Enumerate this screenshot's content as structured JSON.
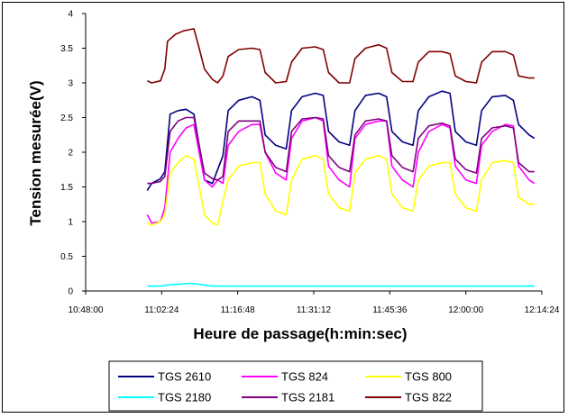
{
  "chart_data": {
    "type": "line",
    "xlabel": "Heure de passage(h:min:sec)",
    "ylabel": "Tension mesurée(V)",
    "xlim": [
      "10:48:00",
      "12:14:24"
    ],
    "ylim": [
      0,
      4
    ],
    "x_tick_labels": [
      "10:48:00",
      "11:02:24",
      "11:16:48",
      "11:31:12",
      "11:45:36",
      "12:00:00",
      "12:14:24"
    ],
    "y_tick_labels": [
      "0",
      "0.5",
      "1",
      "1.5",
      "2",
      "2.5",
      "3",
      "3.5",
      "4"
    ],
    "grid": false,
    "legend_position": "bottom",
    "x_unit": "h:min:sec",
    "series": [
      {
        "name": "TGS 2610",
        "color": "#000080",
        "points": [
          [
            "10:59:40",
            1.45
          ],
          [
            "11:00:30",
            1.55
          ],
          [
            "11:02:10",
            1.62
          ],
          [
            "11:03:00",
            1.72
          ],
          [
            "11:04:00",
            2.55
          ],
          [
            "11:05:30",
            2.6
          ],
          [
            "11:07:00",
            2.62
          ],
          [
            "11:08:30",
            2.55
          ],
          [
            "11:09:30",
            2.1
          ],
          [
            "11:10:30",
            1.6
          ],
          [
            "11:12:00",
            1.55
          ],
          [
            "11:13:00",
            1.75
          ],
          [
            "11:14:00",
            1.95
          ],
          [
            "11:15:00",
            2.6
          ],
          [
            "11:17:00",
            2.75
          ],
          [
            "11:19:30",
            2.8
          ],
          [
            "11:21:00",
            2.75
          ],
          [
            "11:22:00",
            2.25
          ],
          [
            "11:24:00",
            2.1
          ],
          [
            "11:26:00",
            2.05
          ],
          [
            "11:27:00",
            2.6
          ],
          [
            "11:29:00",
            2.8
          ],
          [
            "11:31:30",
            2.85
          ],
          [
            "11:33:00",
            2.82
          ],
          [
            "11:34:00",
            2.3
          ],
          [
            "11:36:00",
            2.15
          ],
          [
            "11:38:00",
            2.1
          ],
          [
            "11:39:00",
            2.6
          ],
          [
            "11:41:00",
            2.82
          ],
          [
            "11:43:30",
            2.85
          ],
          [
            "11:45:00",
            2.8
          ],
          [
            "11:46:00",
            2.3
          ],
          [
            "11:48:00",
            2.15
          ],
          [
            "11:50:00",
            2.1
          ],
          [
            "11:51:00",
            2.6
          ],
          [
            "11:53:00",
            2.8
          ],
          [
            "11:55:30",
            2.88
          ],
          [
            "11:57:00",
            2.85
          ],
          [
            "11:58:00",
            2.3
          ],
          [
            "12:00:00",
            2.15
          ],
          [
            "12:02:00",
            2.1
          ],
          [
            "12:03:00",
            2.6
          ],
          [
            "12:05:00",
            2.8
          ],
          [
            "12:07:30",
            2.82
          ],
          [
            "12:09:00",
            2.75
          ],
          [
            "12:10:00",
            2.4
          ],
          [
            "12:12:00",
            2.25
          ],
          [
            "12:13:00",
            2.2
          ]
        ]
      },
      {
        "name": "TGS 824",
        "color": "#ff00ff",
        "points": [
          [
            "10:59:40",
            1.1
          ],
          [
            "11:00:30",
            0.98
          ],
          [
            "11:02:10",
            1.0
          ],
          [
            "11:03:00",
            1.2
          ],
          [
            "11:04:00",
            2.0
          ],
          [
            "11:05:30",
            2.2
          ],
          [
            "11:07:00",
            2.35
          ],
          [
            "11:08:30",
            2.4
          ],
          [
            "11:09:30",
            2.0
          ],
          [
            "11:10:30",
            1.6
          ],
          [
            "11:12:00",
            1.5
          ],
          [
            "11:13:00",
            1.6
          ],
          [
            "11:14:00",
            1.55
          ],
          [
            "11:15:00",
            2.1
          ],
          [
            "11:17:00",
            2.3
          ],
          [
            "11:19:30",
            2.4
          ],
          [
            "11:21:00",
            2.4
          ],
          [
            "11:22:00",
            2.0
          ],
          [
            "11:24:00",
            1.7
          ],
          [
            "11:26:00",
            1.6
          ],
          [
            "11:27:00",
            2.2
          ],
          [
            "11:29:00",
            2.45
          ],
          [
            "11:31:30",
            2.5
          ],
          [
            "11:33:00",
            2.45
          ],
          [
            "11:34:00",
            1.8
          ],
          [
            "11:36:00",
            1.6
          ],
          [
            "11:38:00",
            1.5
          ],
          [
            "11:39:00",
            2.2
          ],
          [
            "11:41:00",
            2.4
          ],
          [
            "11:43:30",
            2.45
          ],
          [
            "11:45:00",
            2.45
          ],
          [
            "11:46:00",
            1.8
          ],
          [
            "11:48:00",
            1.6
          ],
          [
            "11:50:00",
            1.5
          ],
          [
            "11:51:00",
            2.0
          ],
          [
            "11:53:00",
            2.3
          ],
          [
            "11:55:30",
            2.4
          ],
          [
            "11:57:00",
            2.35
          ],
          [
            "11:58:00",
            1.8
          ],
          [
            "12:00:00",
            1.6
          ],
          [
            "12:02:00",
            1.55
          ],
          [
            "12:03:00",
            2.1
          ],
          [
            "12:05:00",
            2.3
          ],
          [
            "12:07:30",
            2.4
          ],
          [
            "12:09:00",
            2.38
          ],
          [
            "12:10:00",
            1.8
          ],
          [
            "12:12:00",
            1.6
          ],
          [
            "12:13:00",
            1.55
          ]
        ]
      },
      {
        "name": "TGS 800",
        "color": "#ffff00",
        "points": [
          [
            "10:59:40",
            0.98
          ],
          [
            "11:00:30",
            0.95
          ],
          [
            "11:02:10",
            1.0
          ],
          [
            "11:03:00",
            1.1
          ],
          [
            "11:04:00",
            1.7
          ],
          [
            "11:05:30",
            1.85
          ],
          [
            "11:07:00",
            1.95
          ],
          [
            "11:08:30",
            1.9
          ],
          [
            "11:09:30",
            1.5
          ],
          [
            "11:10:30",
            1.1
          ],
          [
            "11:12:00",
            0.98
          ],
          [
            "11:13:00",
            0.95
          ],
          [
            "11:14:00",
            1.3
          ],
          [
            "11:15:00",
            1.6
          ],
          [
            "11:17:00",
            1.8
          ],
          [
            "11:19:30",
            1.85
          ],
          [
            "11:21:00",
            1.85
          ],
          [
            "11:22:00",
            1.4
          ],
          [
            "11:24:00",
            1.15
          ],
          [
            "11:26:00",
            1.1
          ],
          [
            "11:27:00",
            1.6
          ],
          [
            "11:29:00",
            1.9
          ],
          [
            "11:31:30",
            1.95
          ],
          [
            "11:33:00",
            1.9
          ],
          [
            "11:34:00",
            1.4
          ],
          [
            "11:36:00",
            1.2
          ],
          [
            "11:38:00",
            1.15
          ],
          [
            "11:39:00",
            1.7
          ],
          [
            "11:41:00",
            1.9
          ],
          [
            "11:43:30",
            1.95
          ],
          [
            "11:45:00",
            1.9
          ],
          [
            "11:46:00",
            1.4
          ],
          [
            "11:48:00",
            1.2
          ],
          [
            "11:50:00",
            1.15
          ],
          [
            "11:51:00",
            1.6
          ],
          [
            "11:53:00",
            1.8
          ],
          [
            "11:55:30",
            1.85
          ],
          [
            "11:57:00",
            1.85
          ],
          [
            "11:58:00",
            1.4
          ],
          [
            "12:00:00",
            1.2
          ],
          [
            "12:02:00",
            1.15
          ],
          [
            "12:03:00",
            1.6
          ],
          [
            "12:05:00",
            1.85
          ],
          [
            "12:07:30",
            1.88
          ],
          [
            "12:09:00",
            1.85
          ],
          [
            "12:10:00",
            1.35
          ],
          [
            "12:12:00",
            1.25
          ],
          [
            "12:13:00",
            1.25
          ]
        ]
      },
      {
        "name": "TGS 2180",
        "color": "#00ffff",
        "points": [
          [
            "10:59:40",
            0.07
          ],
          [
            "11:02:10",
            0.07
          ],
          [
            "11:04:00",
            0.09
          ],
          [
            "11:06:00",
            0.1
          ],
          [
            "11:08:00",
            0.11
          ],
          [
            "11:10:00",
            0.09
          ],
          [
            "11:12:00",
            0.07
          ],
          [
            "11:20:00",
            0.07
          ],
          [
            "11:40:00",
            0.07
          ],
          [
            "12:00:00",
            0.07
          ],
          [
            "12:13:00",
            0.07
          ]
        ]
      },
      {
        "name": "TGS 2181",
        "color": "#800080",
        "points": [
          [
            "10:59:40",
            1.55
          ],
          [
            "11:00:30",
            1.55
          ],
          [
            "11:02:10",
            1.58
          ],
          [
            "11:03:00",
            1.65
          ],
          [
            "11:04:00",
            2.3
          ],
          [
            "11:05:30",
            2.45
          ],
          [
            "11:07:00",
            2.5
          ],
          [
            "11:08:30",
            2.5
          ],
          [
            "11:09:30",
            2.1
          ],
          [
            "11:10:30",
            1.7
          ],
          [
            "11:12:00",
            1.62
          ],
          [
            "11:13:00",
            1.6
          ],
          [
            "11:14:00",
            1.65
          ],
          [
            "11:15:00",
            2.3
          ],
          [
            "11:17:00",
            2.45
          ],
          [
            "11:19:30",
            2.45
          ],
          [
            "11:21:00",
            2.45
          ],
          [
            "11:22:00",
            2.0
          ],
          [
            "11:24:00",
            1.78
          ],
          [
            "11:26:00",
            1.72
          ],
          [
            "11:27:00",
            2.3
          ],
          [
            "11:29:00",
            2.48
          ],
          [
            "11:31:30",
            2.5
          ],
          [
            "11:33:00",
            2.48
          ],
          [
            "11:34:00",
            1.95
          ],
          [
            "11:36:00",
            1.78
          ],
          [
            "11:38:00",
            1.72
          ],
          [
            "11:39:00",
            2.25
          ],
          [
            "11:41:00",
            2.45
          ],
          [
            "11:43:30",
            2.48
          ],
          [
            "11:45:00",
            2.45
          ],
          [
            "11:46:00",
            1.95
          ],
          [
            "11:48:00",
            1.78
          ],
          [
            "11:50:00",
            1.72
          ],
          [
            "11:51:00",
            2.2
          ],
          [
            "11:53:00",
            2.38
          ],
          [
            "11:55:30",
            2.42
          ],
          [
            "11:57:00",
            2.38
          ],
          [
            "11:58:00",
            1.9
          ],
          [
            "12:00:00",
            1.75
          ],
          [
            "12:02:00",
            1.7
          ],
          [
            "12:03:00",
            2.2
          ],
          [
            "12:05:00",
            2.35
          ],
          [
            "12:07:30",
            2.38
          ],
          [
            "12:09:00",
            2.35
          ],
          [
            "12:10:00",
            1.85
          ],
          [
            "12:12:00",
            1.72
          ],
          [
            "12:13:00",
            1.72
          ]
        ]
      },
      {
        "name": "TGS 822",
        "color": "#800000",
        "points": [
          [
            "10:59:40",
            3.03
          ],
          [
            "11:00:30",
            3.0
          ],
          [
            "11:02:10",
            3.03
          ],
          [
            "11:03:00",
            3.2
          ],
          [
            "11:03:30",
            3.6
          ],
          [
            "11:05:00",
            3.7
          ],
          [
            "11:06:30",
            3.75
          ],
          [
            "11:08:30",
            3.78
          ],
          [
            "11:09:30",
            3.5
          ],
          [
            "11:10:30",
            3.2
          ],
          [
            "11:12:00",
            3.05
          ],
          [
            "11:13:00",
            3.0
          ],
          [
            "11:14:00",
            3.1
          ],
          [
            "11:15:00",
            3.38
          ],
          [
            "11:17:00",
            3.48
          ],
          [
            "11:19:30",
            3.5
          ],
          [
            "11:21:00",
            3.48
          ],
          [
            "11:22:00",
            3.15
          ],
          [
            "11:24:00",
            3.0
          ],
          [
            "11:26:00",
            3.02
          ],
          [
            "11:27:00",
            3.3
          ],
          [
            "11:29:00",
            3.5
          ],
          [
            "11:31:30",
            3.52
          ],
          [
            "11:33:00",
            3.48
          ],
          [
            "11:34:00",
            3.15
          ],
          [
            "11:36:00",
            3.0
          ],
          [
            "11:38:00",
            3.0
          ],
          [
            "11:39:00",
            3.35
          ],
          [
            "11:41:00",
            3.5
          ],
          [
            "11:43:30",
            3.55
          ],
          [
            "11:45:00",
            3.5
          ],
          [
            "11:46:00",
            3.15
          ],
          [
            "11:48:00",
            3.02
          ],
          [
            "11:50:00",
            3.02
          ],
          [
            "11:51:00",
            3.3
          ],
          [
            "11:53:00",
            3.45
          ],
          [
            "11:55:30",
            3.45
          ],
          [
            "11:57:00",
            3.42
          ],
          [
            "11:58:00",
            3.1
          ],
          [
            "12:00:00",
            3.02
          ],
          [
            "12:02:00",
            3.0
          ],
          [
            "12:03:00",
            3.3
          ],
          [
            "12:05:00",
            3.45
          ],
          [
            "12:07:30",
            3.45
          ],
          [
            "12:09:00",
            3.4
          ],
          [
            "12:10:00",
            3.1
          ],
          [
            "12:12:00",
            3.07
          ],
          [
            "12:13:00",
            3.07
          ]
        ]
      }
    ]
  }
}
